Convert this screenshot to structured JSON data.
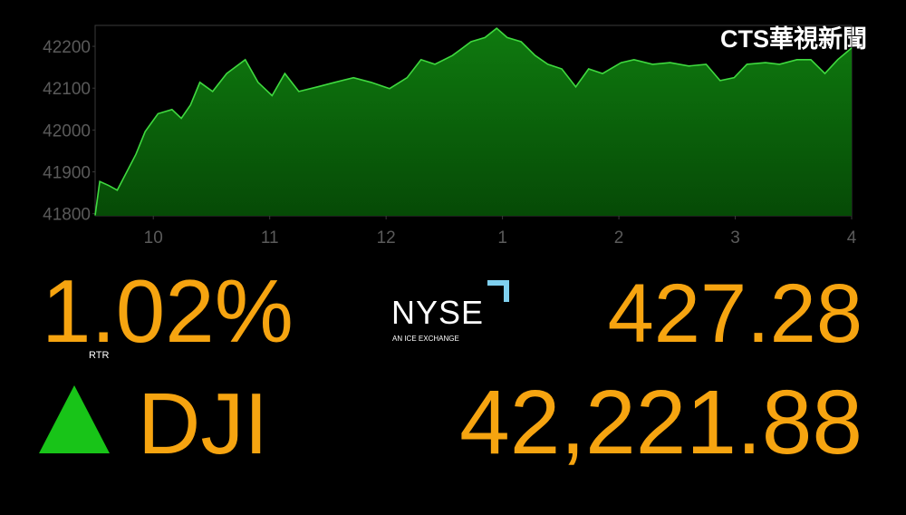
{
  "logo": "CTS華視新聞",
  "change": "1.02%",
  "source": "RTR",
  "exchange": {
    "name": "NYSE",
    "tagline": "AN ICE EXCHANGE"
  },
  "points_change": "427.28",
  "index": "DJI",
  "index_value": "42,221.88",
  "chart_data": {
    "type": "area",
    "color": "#3fd93f",
    "fill": "#0b6b0b",
    "x": [
      9.5,
      9.54,
      9.62,
      9.69,
      9.77,
      9.85,
      9.93,
      10.04,
      10.16,
      10.24,
      10.32,
      10.4,
      10.51,
      10.63,
      10.79,
      10.9,
      11.02,
      11.13,
      11.25,
      11.41,
      11.56,
      11.72,
      11.87,
      12.03,
      12.18,
      12.3,
      12.42,
      12.57,
      12.73,
      12.85,
      12.95,
      13.04,
      13.16,
      13.28,
      13.39,
      13.51,
      13.63,
      13.74,
      13.86,
      14.02,
      14.13,
      14.29,
      14.44,
      14.6,
      14.75,
      14.87,
      14.99,
      15.1,
      15.26,
      15.38,
      15.53,
      15.65,
      15.77,
      15.88,
      16.0
    ],
    "values": [
      41796,
      41877,
      41867,
      41856,
      41899,
      41942,
      41996,
      42039,
      42049,
      42028,
      42060,
      42114,
      42092,
      42135,
      42168,
      42114,
      42082,
      42135,
      42092,
      42103,
      42114,
      42125,
      42114,
      42099,
      42125,
      42168,
      42157,
      42178,
      42211,
      42221,
      42243,
      42221,
      42211,
      42178,
      42157,
      42146,
      42103,
      42146,
      42135,
      42161,
      42168,
      42157,
      42161,
      42153,
      42157,
      42118,
      42125,
      42157,
      42161,
      42157,
      42168,
      42168,
      42135,
      42168,
      42196
    ],
    "xlim": [
      9.5,
      16
    ],
    "xticks": [
      10,
      11,
      12,
      {
        "value": 13,
        "label": "1"
      },
      {
        "value": 14,
        "label": "2"
      },
      {
        "value": 15,
        "label": "3"
      },
      {
        "value": 16,
        "label": "4"
      }
    ],
    "ylim": [
      41795,
      42250
    ],
    "yticks": [
      41800,
      41900,
      42000,
      42100,
      42200
    ]
  }
}
